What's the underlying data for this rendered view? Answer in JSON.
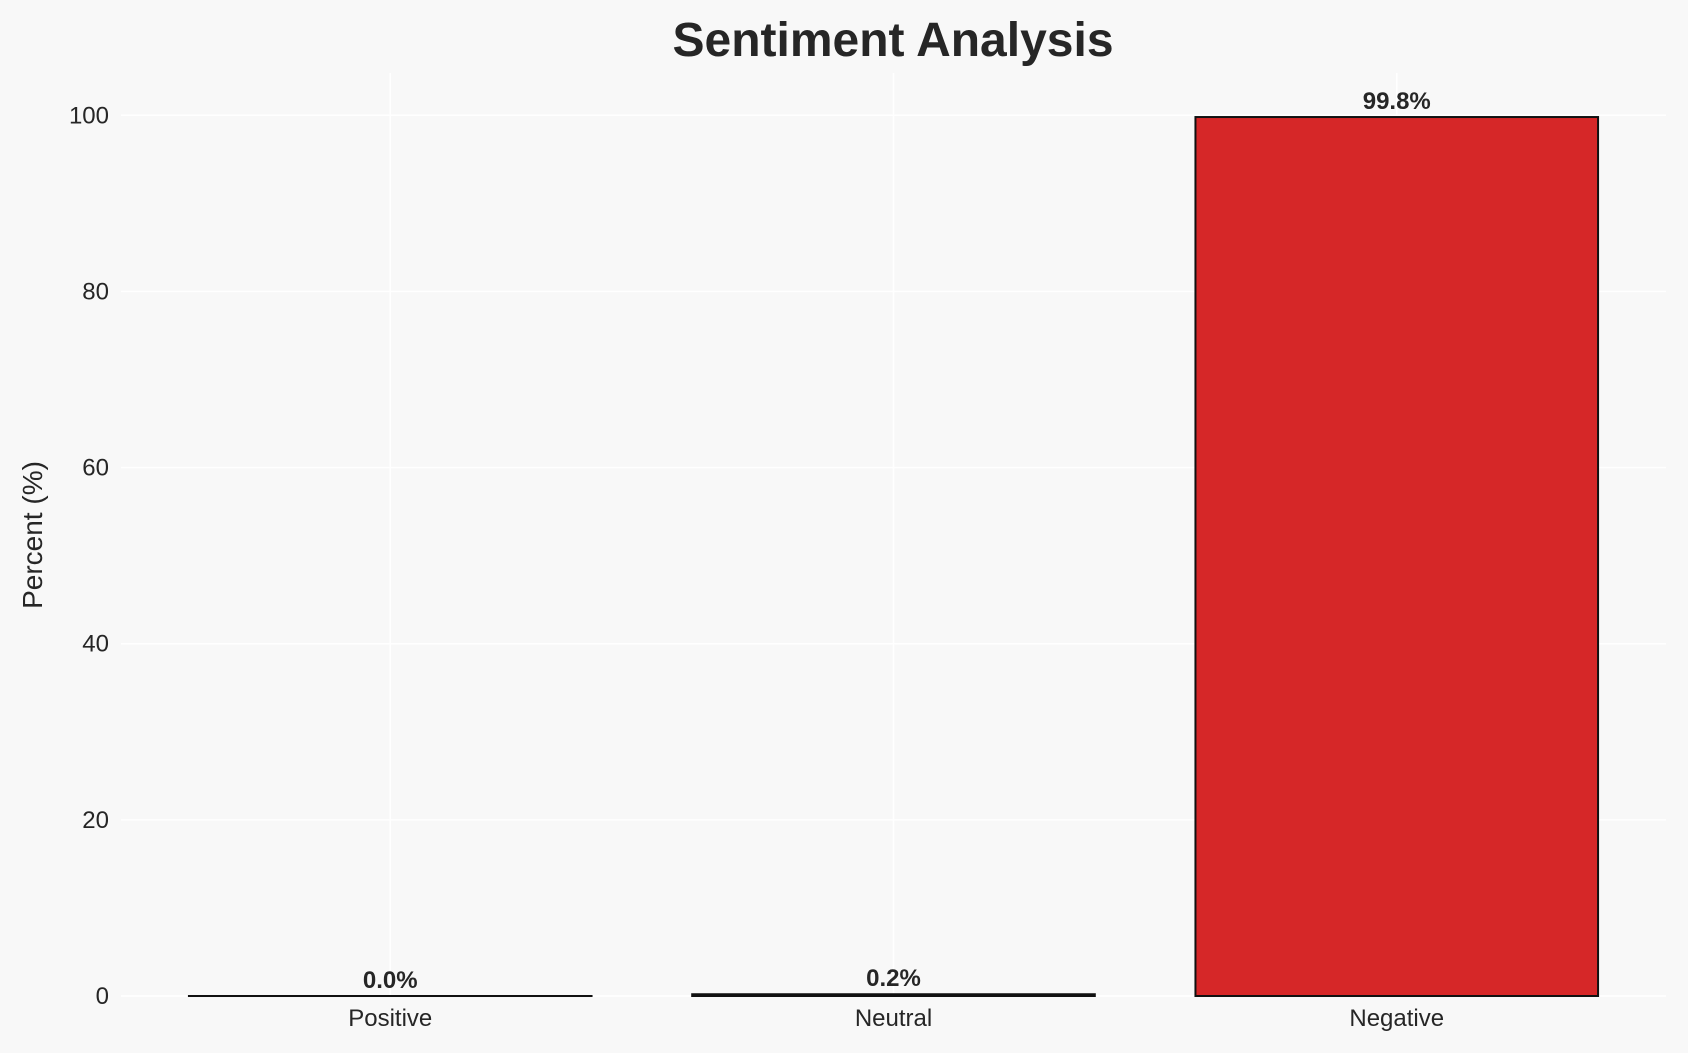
{
  "chart_data": {
    "type": "bar",
    "title": "Sentiment Analysis",
    "xlabel": "",
    "ylabel": "Percent (%)",
    "categories": [
      "Positive",
      "Neutral",
      "Negative"
    ],
    "values": [
      0.0,
      0.2,
      99.8
    ],
    "data_labels": [
      "0.0%",
      "0.2%",
      "99.8%"
    ],
    "bar_colors": [
      "#2ca02c",
      "#7f7f7f",
      "#d62728"
    ],
    "edge_color": "#111111",
    "ylim": [
      0,
      104.8
    ],
    "yticks": [
      0,
      20,
      40,
      60,
      80,
      100
    ],
    "grid": true,
    "background": "#f8f8f8"
  }
}
